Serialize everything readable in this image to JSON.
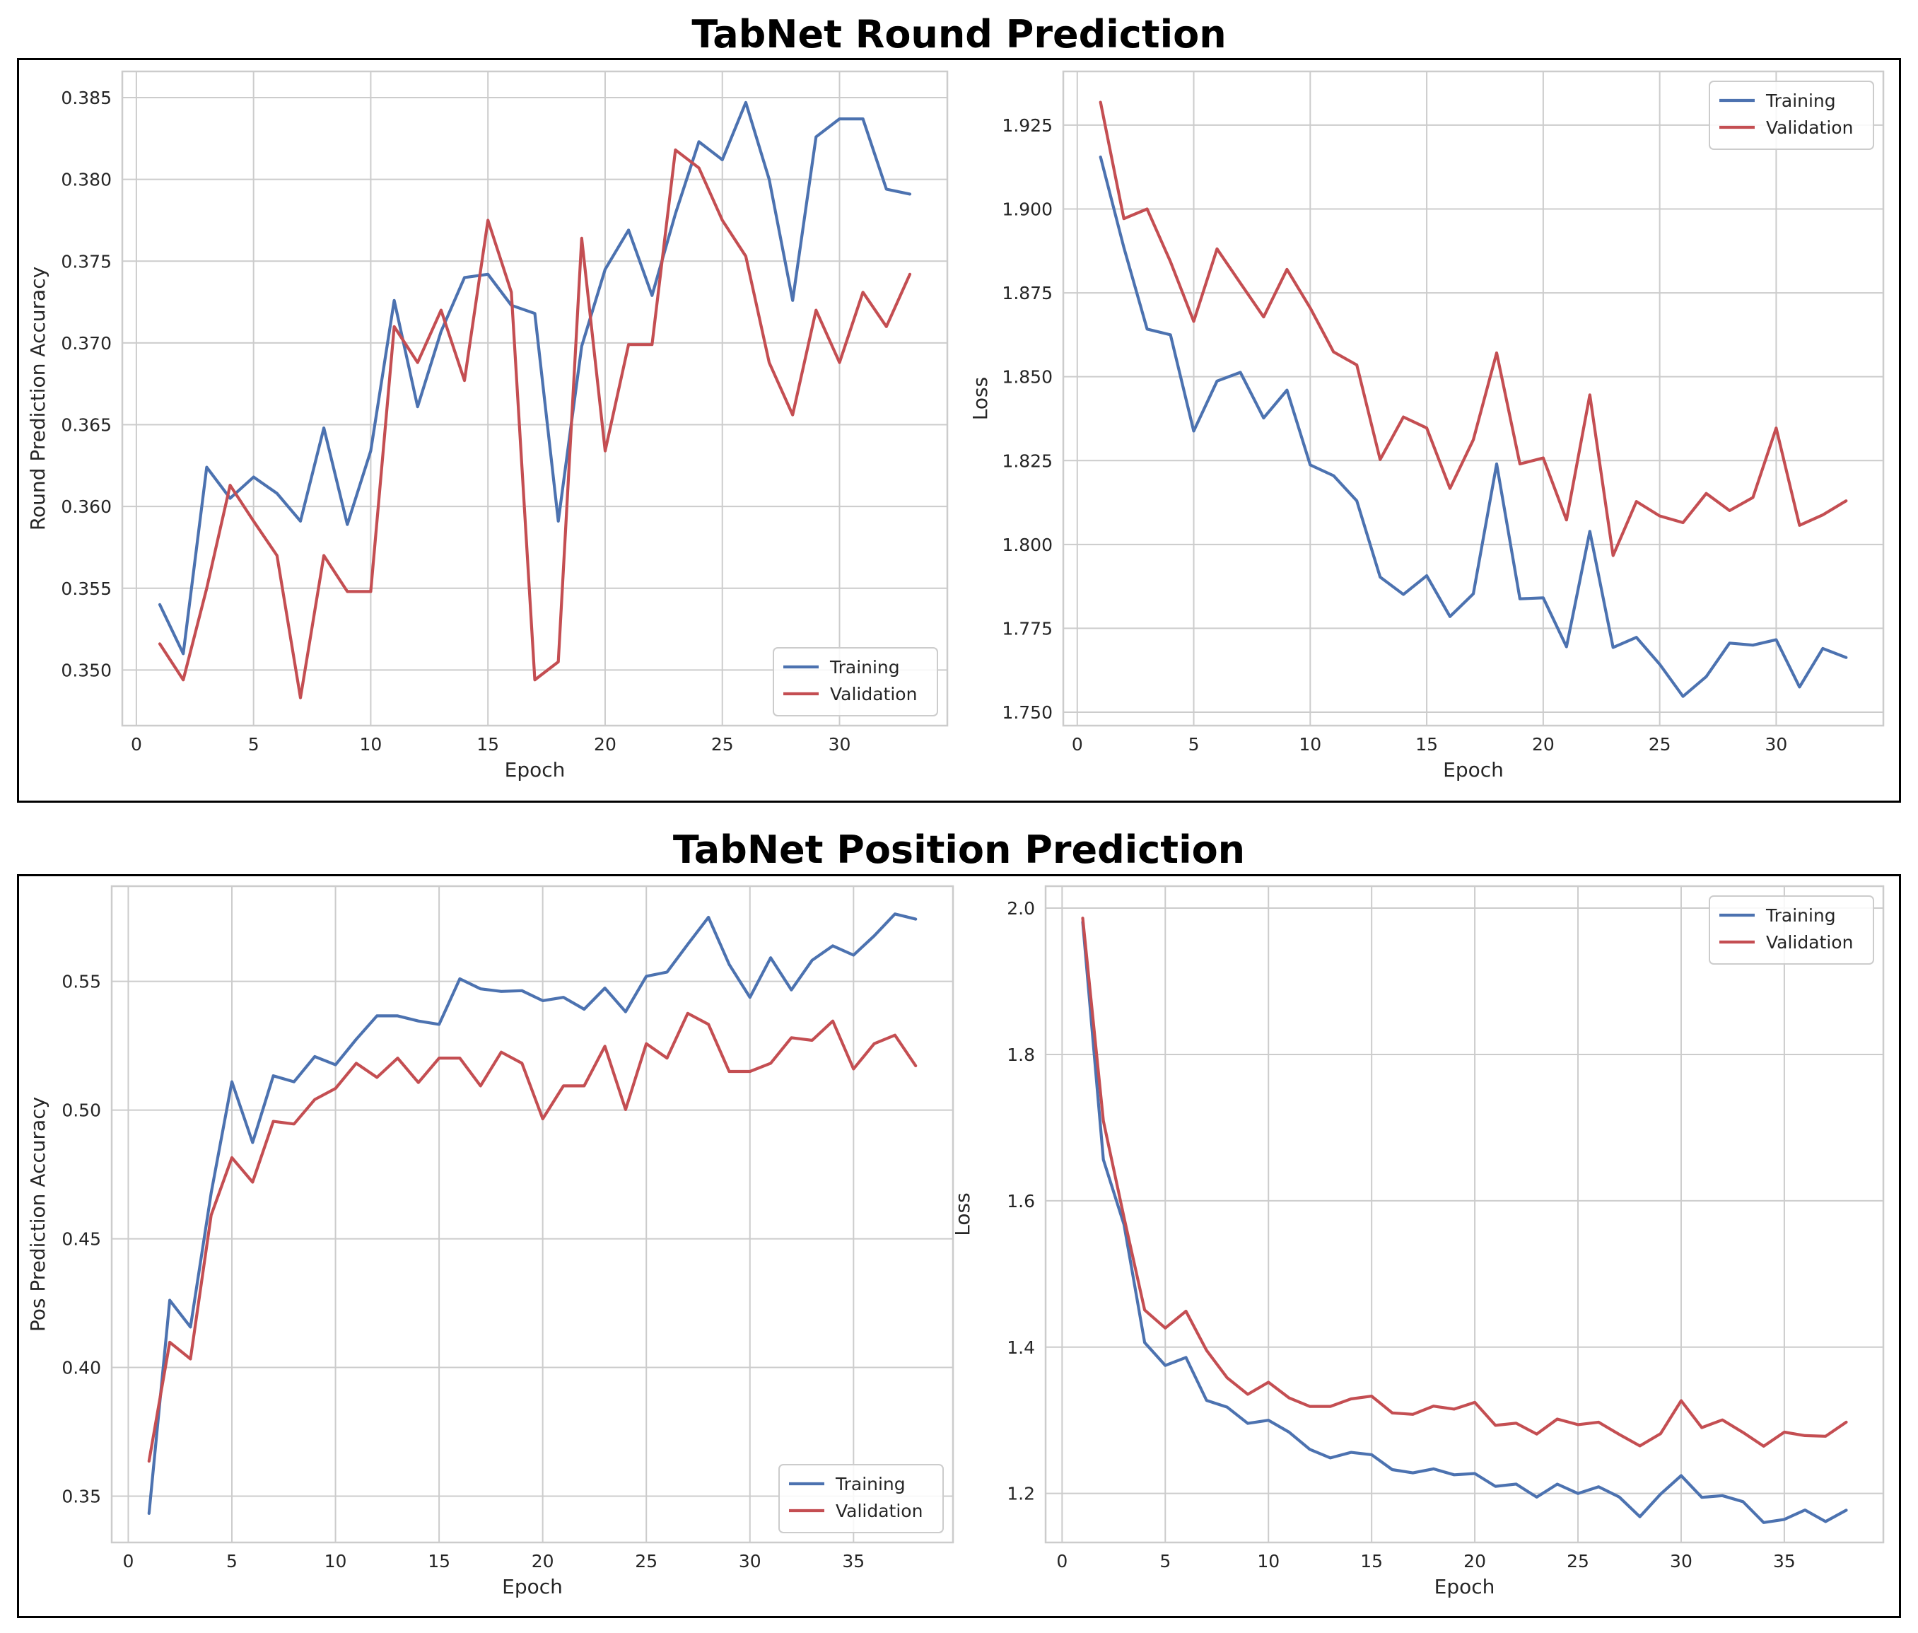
{
  "sections": [
    {
      "title": "TabNet Round Prediction"
    },
    {
      "title": "TabNet Position Prediction"
    }
  ],
  "colors": {
    "training": "#4c72b0",
    "validation": "#c44e52",
    "grid": "#cccccc",
    "frame": "#cccccc"
  },
  "chart_data": [
    {
      "type": "line",
      "section": 0,
      "xlabel": "Epoch",
      "ylabel": "Round Prediction Accuracy",
      "xlim": [
        -0.6,
        34.6
      ],
      "ylim": [
        0.3466,
        0.3866
      ],
      "xticks": [
        0,
        5,
        10,
        15,
        20,
        25,
        30
      ],
      "yticks": [
        0.35,
        0.355,
        0.36,
        0.365,
        0.37,
        0.375,
        0.38,
        0.385
      ],
      "ytick_format": 3,
      "grid": true,
      "legend": "lower right",
      "x": [
        1,
        2,
        3,
        4,
        5,
        6,
        7,
        8,
        9,
        10,
        11,
        12,
        13,
        14,
        15,
        16,
        17,
        18,
        19,
        20,
        21,
        22,
        23,
        24,
        25,
        26,
        27,
        28,
        29,
        30,
        31,
        32,
        33
      ],
      "series": [
        {
          "name": "Training",
          "color": "#4c72b0",
          "values": [
            0.354,
            0.351,
            0.3624,
            0.3605,
            0.3618,
            0.3608,
            0.3591,
            0.3648,
            0.3589,
            0.3634,
            0.3726,
            0.3661,
            0.3707,
            0.374,
            0.3742,
            0.3723,
            0.3718,
            0.3591,
            0.3698,
            0.3745,
            0.3769,
            0.3729,
            0.3779,
            0.3823,
            0.3812,
            0.3847,
            0.38,
            0.3726,
            0.3826,
            0.3837,
            0.3837,
            0.3794,
            0.3791
          ]
        },
        {
          "name": "Validation",
          "color": "#c44e52",
          "values": [
            0.3516,
            0.3494,
            0.355,
            0.3613,
            0.3591,
            0.357,
            0.3483,
            0.357,
            0.3548,
            0.3548,
            0.371,
            0.3688,
            0.372,
            0.3677,
            0.3775,
            0.3731,
            0.3494,
            0.3505,
            0.3764,
            0.3634,
            0.3699,
            0.3699,
            0.3818,
            0.3807,
            0.3775,
            0.3753,
            0.3688,
            0.3656,
            0.372,
            0.3688,
            0.3731,
            0.371,
            0.3742
          ]
        }
      ]
    },
    {
      "type": "line",
      "section": 0,
      "xlabel": "Epoch",
      "ylabel": "Loss",
      "xlim": [
        -0.6,
        34.6
      ],
      "ylim": [
        1.746,
        1.941
      ],
      "xticks": [
        0,
        5,
        10,
        15,
        20,
        25,
        30
      ],
      "yticks": [
        1.75,
        1.775,
        1.8,
        1.825,
        1.85,
        1.875,
        1.9,
        1.925
      ],
      "ytick_format": 3,
      "grid": true,
      "legend": "upper right",
      "x": [
        1,
        2,
        3,
        4,
        5,
        6,
        7,
        8,
        9,
        10,
        11,
        12,
        13,
        14,
        15,
        16,
        17,
        18,
        19,
        20,
        21,
        22,
        23,
        24,
        25,
        26,
        27,
        28,
        29,
        30,
        31,
        32,
        33
      ],
      "series": [
        {
          "name": "Training",
          "color": "#4c72b0",
          "values": [
            1.9155,
            1.8885,
            1.8642,
            1.8625,
            1.8338,
            1.8487,
            1.8513,
            1.8377,
            1.846,
            1.8237,
            1.8205,
            1.813,
            1.7903,
            1.7851,
            1.7907,
            1.7785,
            1.7853,
            1.824,
            1.7838,
            1.7841,
            1.7695,
            1.8039,
            1.7693,
            1.7723,
            1.7643,
            1.7547,
            1.7606,
            1.7706,
            1.77,
            1.7716,
            1.7575,
            1.769,
            1.7663
          ]
        },
        {
          "name": "Validation",
          "color": "#c44e52",
          "values": [
            1.9318,
            1.8971,
            1.9,
            1.8843,
            1.8665,
            1.8881,
            1.8779,
            1.8678,
            1.882,
            1.8705,
            1.8574,
            1.8535,
            1.8253,
            1.838,
            1.8347,
            1.8167,
            1.8312,
            1.8571,
            1.824,
            1.8258,
            1.8073,
            1.8446,
            1.7967,
            1.8128,
            1.8085,
            1.8065,
            1.8152,
            1.8101,
            1.814,
            1.8347,
            1.8057,
            1.8088,
            1.813
          ]
        }
      ]
    },
    {
      "type": "line",
      "section": 1,
      "xlabel": "Epoch",
      "ylabel": "Pos Prediction Accuracy",
      "xlim": [
        -0.8,
        39.8
      ],
      "ylim": [
        0.332,
        0.587
      ],
      "xticks": [
        0,
        5,
        10,
        15,
        20,
        25,
        30,
        35
      ],
      "yticks": [
        0.35,
        0.4,
        0.45,
        0.5,
        0.55
      ],
      "ytick_format": 2,
      "grid": true,
      "legend": "lower right",
      "x": [
        1,
        2,
        3,
        4,
        5,
        6,
        7,
        8,
        9,
        10,
        11,
        12,
        13,
        14,
        15,
        16,
        17,
        18,
        19,
        20,
        21,
        22,
        23,
        24,
        25,
        26,
        27,
        28,
        29,
        30,
        31,
        32,
        33,
        34,
        35,
        36,
        37,
        38
      ],
      "series": [
        {
          "name": "Training",
          "color": "#4c72b0",
          "values": [
            0.3433,
            0.4261,
            0.4157,
            0.4678,
            0.511,
            0.4874,
            0.5133,
            0.511,
            0.5208,
            0.5176,
            0.5275,
            0.5366,
            0.5366,
            0.5346,
            0.5333,
            0.551,
            0.5471,
            0.5461,
            0.5464,
            0.5425,
            0.5438,
            0.5392,
            0.5474,
            0.5382,
            0.552,
            0.5536,
            0.5644,
            0.5749,
            0.5566,
            0.5438,
            0.5592,
            0.5467,
            0.5582,
            0.5638,
            0.5602,
            0.5677,
            0.5762,
            0.5742
          ]
        },
        {
          "name": "Validation",
          "color": "#c44e52",
          "values": [
            0.3636,
            0.4098,
            0.4033,
            0.4592,
            0.4815,
            0.472,
            0.4956,
            0.4946,
            0.5041,
            0.5084,
            0.5182,
            0.5127,
            0.5202,
            0.5107,
            0.5202,
            0.5202,
            0.5094,
            0.5225,
            0.5182,
            0.4966,
            0.5094,
            0.5094,
            0.5248,
            0.5002,
            0.5258,
            0.5202,
            0.5376,
            0.5333,
            0.515,
            0.515,
            0.5182,
            0.5281,
            0.5271,
            0.5346,
            0.516,
            0.5258,
            0.5291,
            0.5172
          ]
        }
      ]
    },
    {
      "type": "line",
      "section": 1,
      "xlabel": "Epoch",
      "ylabel": "Loss",
      "xlim": [
        -0.8,
        39.8
      ],
      "ylim": [
        1.133,
        2.03
      ],
      "xticks": [
        0,
        5,
        10,
        15,
        20,
        25,
        30,
        35
      ],
      "yticks": [
        1.2,
        1.4,
        1.6,
        1.8,
        2.0
      ],
      "ytick_format": 1,
      "grid": true,
      "legend": "upper right",
      "x": [
        1,
        2,
        3,
        4,
        5,
        6,
        7,
        8,
        9,
        10,
        11,
        12,
        13,
        14,
        15,
        16,
        17,
        18,
        19,
        20,
        21,
        22,
        23,
        24,
        25,
        26,
        27,
        28,
        29,
        30,
        31,
        32,
        33,
        34,
        35,
        36,
        37,
        38
      ],
      "series": [
        {
          "name": "Training",
          "color": "#4c72b0",
          "values": [
            1.981,
            1.6563,
            1.5675,
            1.4063,
            1.3749,
            1.3859,
            1.3272,
            1.318,
            1.2958,
            1.3,
            1.2838,
            1.2603,
            1.2486,
            1.2561,
            1.253,
            1.2326,
            1.2281,
            1.2336,
            1.2255,
            1.2272,
            1.2097,
            1.2128,
            1.195,
            1.2127,
            1.2,
            1.2092,
            1.1952,
            1.1682,
            1.199,
            1.2243,
            1.1947,
            1.197,
            1.1888,
            1.1603,
            1.1645,
            1.1774,
            1.1616,
            1.1771
          ]
        },
        {
          "name": "Validation",
          "color": "#c44e52",
          "values": [
            1.9863,
            1.7093,
            1.5772,
            1.4507,
            1.4261,
            1.4491,
            1.3955,
            1.3581,
            1.3355,
            1.352,
            1.3306,
            1.319,
            1.319,
            1.3292,
            1.333,
            1.3101,
            1.3081,
            1.3194,
            1.3153,
            1.3245,
            1.2931,
            1.2961,
            1.2812,
            1.3017,
            1.294,
            1.2974,
            1.2807,
            1.265,
            1.2817,
            1.3268,
            1.29,
            1.3005,
            1.2834,
            1.2646,
            1.2838,
            1.2791,
            1.2782,
            1.2974
          ]
        }
      ]
    }
  ]
}
